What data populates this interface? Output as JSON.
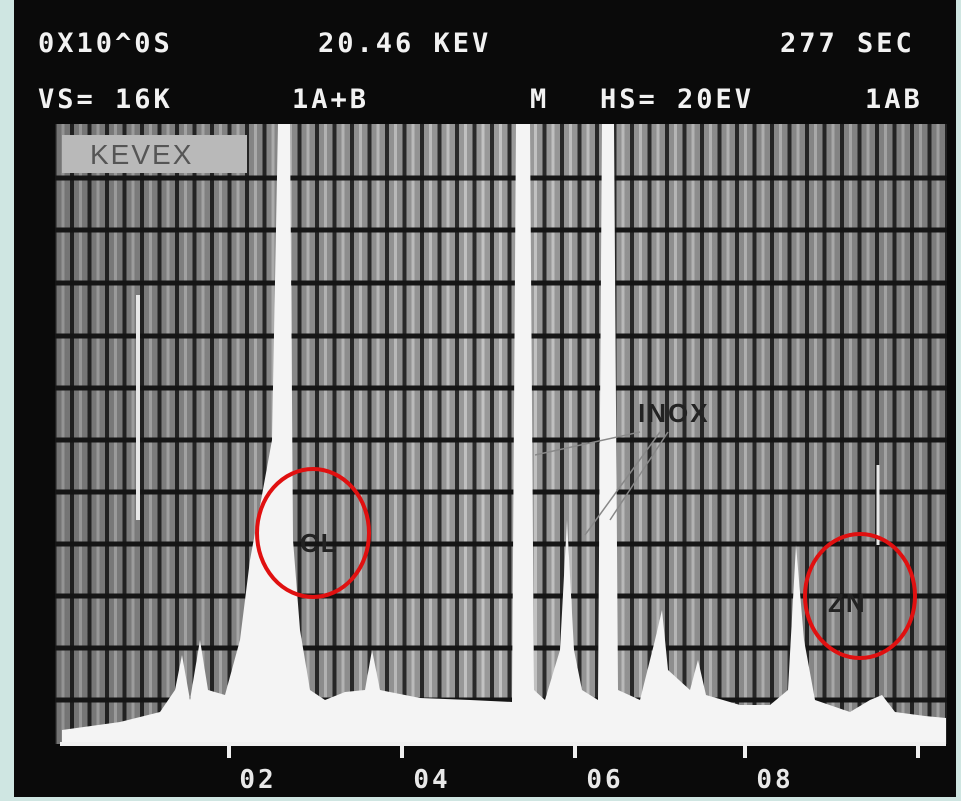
{
  "header": {
    "line1": [
      "0X10^0S",
      "20.46 KEV",
      "277 SEC"
    ],
    "line2": [
      "VS= 16K",
      "1A+B",
      "M",
      "HS= 20EV",
      "1AB"
    ]
  },
  "brand": "KEVEX",
  "x_ticks": [
    "02",
    "04",
    "06",
    "08"
  ],
  "annotations": [
    "CL",
    "INOX",
    "ZN"
  ]
}
